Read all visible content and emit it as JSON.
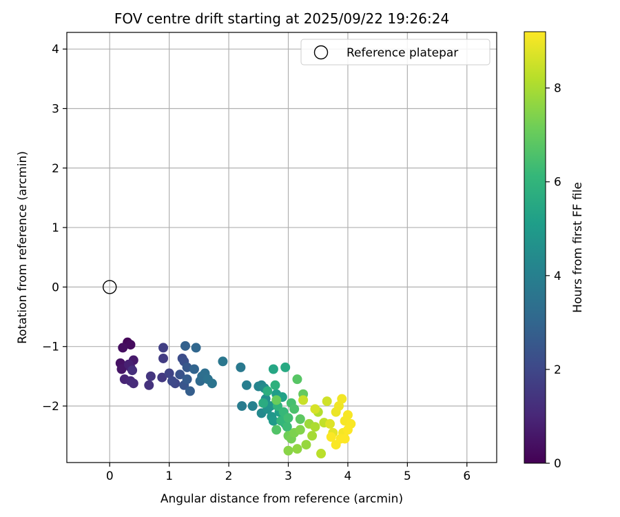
{
  "chart_data": {
    "type": "scatter",
    "title": "FOV centre drift starting at 2025/09/22 19:26:24",
    "xlabel": "Angular distance from reference (arcmin)",
    "ylabel": "Rotation from reference (arcmin)",
    "xlim": [
      -0.72,
      6.5
    ],
    "ylim": [
      -2.95,
      4.28
    ],
    "xticks": [
      0,
      1,
      2,
      3,
      4,
      5,
      6
    ],
    "xtick_labels": [
      "0",
      "1",
      "2",
      "3",
      "4",
      "5",
      "6"
    ],
    "yticks": [
      -2,
      -1,
      0,
      1,
      2,
      3,
      4
    ],
    "ytick_labels": [
      "−2",
      "−1",
      "0",
      "1",
      "2",
      "3",
      "4"
    ],
    "grid": true,
    "legend": {
      "placement": "top-right",
      "label": "Reference platepar"
    },
    "reference_point": {
      "x": 0,
      "y": 0,
      "label": "Reference platepar"
    },
    "colorbar": {
      "label": "Hours from first FF file",
      "range": [
        0,
        9.2
      ],
      "ticks": [
        0,
        2,
        4,
        6,
        8
      ],
      "tick_labels": [
        "0",
        "2",
        "4",
        "6",
        "8"
      ],
      "colormap": "viridis",
      "colors": [
        "#440154",
        "#482878",
        "#3e4989",
        "#31688e",
        "#26828e",
        "#1f9e89",
        "#35b779",
        "#6ece58",
        "#b5de2b",
        "#fde725"
      ]
    },
    "series": [
      {
        "name": "FOV centre",
        "points": [
          [
            0.3,
            -0.93,
            0.15
          ],
          [
            0.35,
            -0.97,
            0.25
          ],
          [
            0.22,
            -1.02,
            0.35
          ],
          [
            0.18,
            -1.28,
            0.45
          ],
          [
            0.2,
            -1.38,
            0.55
          ],
          [
            0.4,
            -1.23,
            0.65
          ],
          [
            0.35,
            -1.35,
            0.75
          ],
          [
            0.32,
            -1.3,
            0.85
          ],
          [
            0.25,
            -1.55,
            0.95
          ],
          [
            0.35,
            -1.58,
            1.05
          ],
          [
            0.4,
            -1.62,
            1.15
          ],
          [
            0.38,
            -1.4,
            1.25
          ],
          [
            0.66,
            -1.65,
            1.35
          ],
          [
            0.69,
            -1.5,
            1.45
          ],
          [
            0.88,
            -1.52,
            1.55
          ],
          [
            0.9,
            -1.2,
            1.65
          ],
          [
            0.9,
            -1.02,
            1.75
          ],
          [
            1.0,
            -1.45,
            1.85
          ],
          [
            1.1,
            -1.62,
            1.95
          ],
          [
            1.05,
            -1.58,
            2.05
          ],
          [
            1.22,
            -1.2,
            2.15
          ],
          [
            1.25,
            -1.25,
            2.25
          ],
          [
            1.18,
            -1.47,
            2.35
          ],
          [
            1.25,
            -1.65,
            2.45
          ],
          [
            1.3,
            -1.35,
            2.55
          ],
          [
            1.3,
            -1.55,
            2.65
          ],
          [
            1.35,
            -1.75,
            2.75
          ],
          [
            1.27,
            -0.99,
            2.85
          ],
          [
            1.42,
            -1.38,
            2.95
          ],
          [
            1.45,
            -1.02,
            3.05
          ],
          [
            1.52,
            -1.58,
            3.15
          ],
          [
            1.55,
            -1.5,
            3.25
          ],
          [
            1.6,
            -1.45,
            3.35
          ],
          [
            1.65,
            -1.55,
            3.45
          ],
          [
            1.72,
            -1.62,
            3.55
          ],
          [
            1.9,
            -1.25,
            3.65
          ],
          [
            2.2,
            -1.35,
            3.75
          ],
          [
            2.22,
            -2.0,
            3.85
          ],
          [
            2.3,
            -1.65,
            3.95
          ],
          [
            2.4,
            -2.0,
            4.05
          ],
          [
            2.5,
            -1.67,
            4.15
          ],
          [
            2.55,
            -1.65,
            4.25
          ],
          [
            2.55,
            -2.12,
            4.35
          ],
          [
            2.6,
            -1.7,
            4.45
          ],
          [
            2.62,
            -1.88,
            4.55
          ],
          [
            2.65,
            -2.05,
            4.65
          ],
          [
            2.7,
            -2.0,
            4.75
          ],
          [
            2.72,
            -2.18,
            4.85
          ],
          [
            2.75,
            -2.25,
            4.95
          ],
          [
            2.8,
            -1.8,
            5.05
          ],
          [
            2.85,
            -2.1,
            5.15
          ],
          [
            2.9,
            -1.85,
            5.25
          ],
          [
            2.95,
            -2.3,
            5.35
          ],
          [
            2.75,
            -1.38,
            5.45
          ],
          [
            2.95,
            -1.35,
            5.55
          ],
          [
            2.58,
            -1.95,
            5.65
          ],
          [
            2.65,
            -1.75,
            5.75
          ],
          [
            2.78,
            -1.65,
            5.85
          ],
          [
            2.82,
            -2.0,
            5.95
          ],
          [
            2.88,
            -2.25,
            6.05
          ],
          [
            2.92,
            -2.1,
            6.15
          ],
          [
            2.98,
            -2.35,
            6.25
          ],
          [
            3.0,
            -2.2,
            6.35
          ],
          [
            3.05,
            -1.95,
            6.45
          ],
          [
            3.1,
            -2.05,
            6.55
          ],
          [
            2.8,
            -2.4,
            6.65
          ],
          [
            3.15,
            -1.55,
            6.75
          ],
          [
            3.2,
            -2.22,
            6.85
          ],
          [
            3.25,
            -1.8,
            6.95
          ],
          [
            2.8,
            -1.9,
            7.05
          ],
          [
            3.0,
            -2.5,
            7.15
          ],
          [
            3.05,
            -2.55,
            7.25
          ],
          [
            3.1,
            -2.45,
            7.35
          ],
          [
            3.2,
            -2.4,
            7.45
          ],
          [
            3.0,
            -2.75,
            7.55
          ],
          [
            3.15,
            -2.72,
            7.65
          ],
          [
            3.3,
            -2.65,
            7.75
          ],
          [
            3.35,
            -2.3,
            7.85
          ],
          [
            3.4,
            -2.5,
            7.95
          ],
          [
            3.45,
            -2.35,
            8.05
          ],
          [
            3.5,
            -2.1,
            8.15
          ],
          [
            3.55,
            -2.8,
            8.25
          ],
          [
            3.6,
            -2.28,
            8.35
          ],
          [
            3.25,
            -1.9,
            8.45
          ],
          [
            3.65,
            -1.92,
            8.55
          ],
          [
            3.45,
            -2.05,
            8.65
          ],
          [
            3.7,
            -2.3,
            8.75
          ],
          [
            3.75,
            -2.45,
            8.85
          ],
          [
            3.8,
            -2.1,
            8.95
          ],
          [
            3.85,
            -2.0,
            9.0
          ],
          [
            3.9,
            -1.88,
            9.05
          ],
          [
            3.92,
            -2.45,
            9.08
          ],
          [
            3.95,
            -2.25,
            9.1
          ],
          [
            4.0,
            -2.15,
            9.12
          ],
          [
            4.05,
            -2.3,
            9.15
          ],
          [
            3.8,
            -2.65,
            9.16
          ],
          [
            3.72,
            -2.52,
            9.17
          ],
          [
            3.88,
            -2.55,
            9.18
          ],
          [
            4.0,
            -2.4,
            9.19
          ],
          [
            3.95,
            -2.55,
            9.2
          ]
        ]
      }
    ]
  }
}
